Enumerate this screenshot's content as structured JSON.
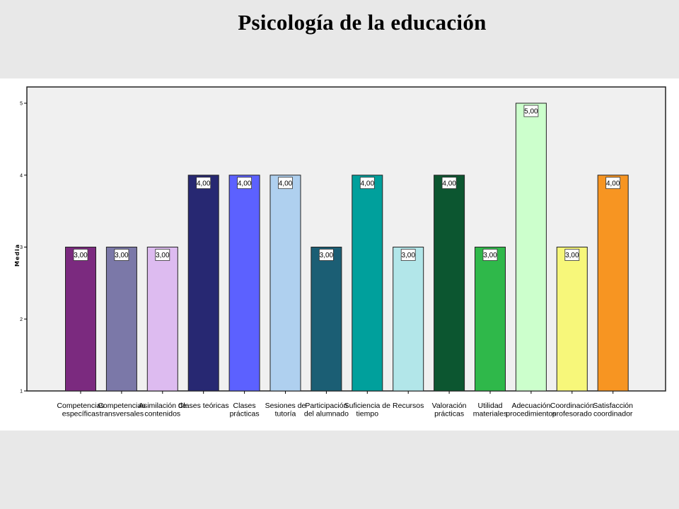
{
  "slide": {
    "title": "Psicología de la educación"
  },
  "chart_data": {
    "type": "bar",
    "title": "",
    "xlabel": "",
    "ylabel": "Media",
    "ylim": [
      1,
      5
    ],
    "yticks": [
      "1",
      "2",
      "3",
      "4",
      "5"
    ],
    "grid": false,
    "legend": "none",
    "plot_background": "#f0f0f0",
    "categories": [
      [
        "Competencias",
        "específicas"
      ],
      [
        "Competencias",
        "transversales"
      ],
      [
        "Asimilación de",
        "contenidos"
      ],
      [
        "Clases teóricas"
      ],
      [
        "Clases",
        "prácticas"
      ],
      [
        "Sesiones de",
        "tutoría"
      ],
      [
        "Participación",
        "del alumnado"
      ],
      [
        "Suficiencia de",
        "tiempo"
      ],
      [
        "Recursos"
      ],
      [
        "Valoración",
        "prácticas"
      ],
      [
        "Utilidad",
        "materiales"
      ],
      [
        "Adecuación",
        "procedimientos"
      ],
      [
        "Coordinación",
        "profesorado"
      ],
      [
        "Satisfacción",
        "coordinador"
      ]
    ],
    "values": [
      3,
      3,
      3,
      4,
      4,
      4,
      3,
      4,
      3,
      4,
      3,
      5,
      3,
      4
    ],
    "value_labels": [
      "3,00",
      "3,00",
      "3,00",
      "4,00",
      "4,00",
      "4,00",
      "3,00",
      "4,00",
      "3,00",
      "4,00",
      "3,00",
      "5,00",
      "3,00",
      "4,00"
    ],
    "colors": [
      "#7b2a7f",
      "#7b78a8",
      "#ddbbf0",
      "#272872",
      "#5c61ff",
      "#afd0ef",
      "#1b5e74",
      "#00a09c",
      "#b2e6e9",
      "#0c5630",
      "#2fb84a",
      "#ccffcc",
      "#f7f77a",
      "#f79522"
    ]
  }
}
